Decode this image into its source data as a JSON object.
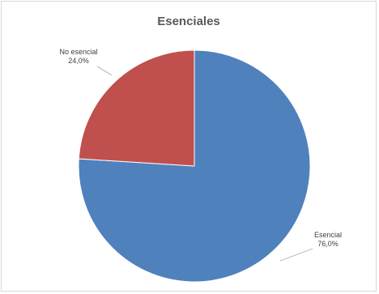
{
  "chart_data": {
    "type": "pie",
    "title": "Esenciales",
    "slices": [
      {
        "label": "Esencial",
        "value": 76.0,
        "value_label": "76,0%",
        "color": "#4f81bd"
      },
      {
        "label": "No esencial",
        "value": 24.0,
        "value_label": "24,0%",
        "color": "#c0504d"
      }
    ],
    "start": "12 o'clock, clockwise",
    "legend": "none"
  }
}
